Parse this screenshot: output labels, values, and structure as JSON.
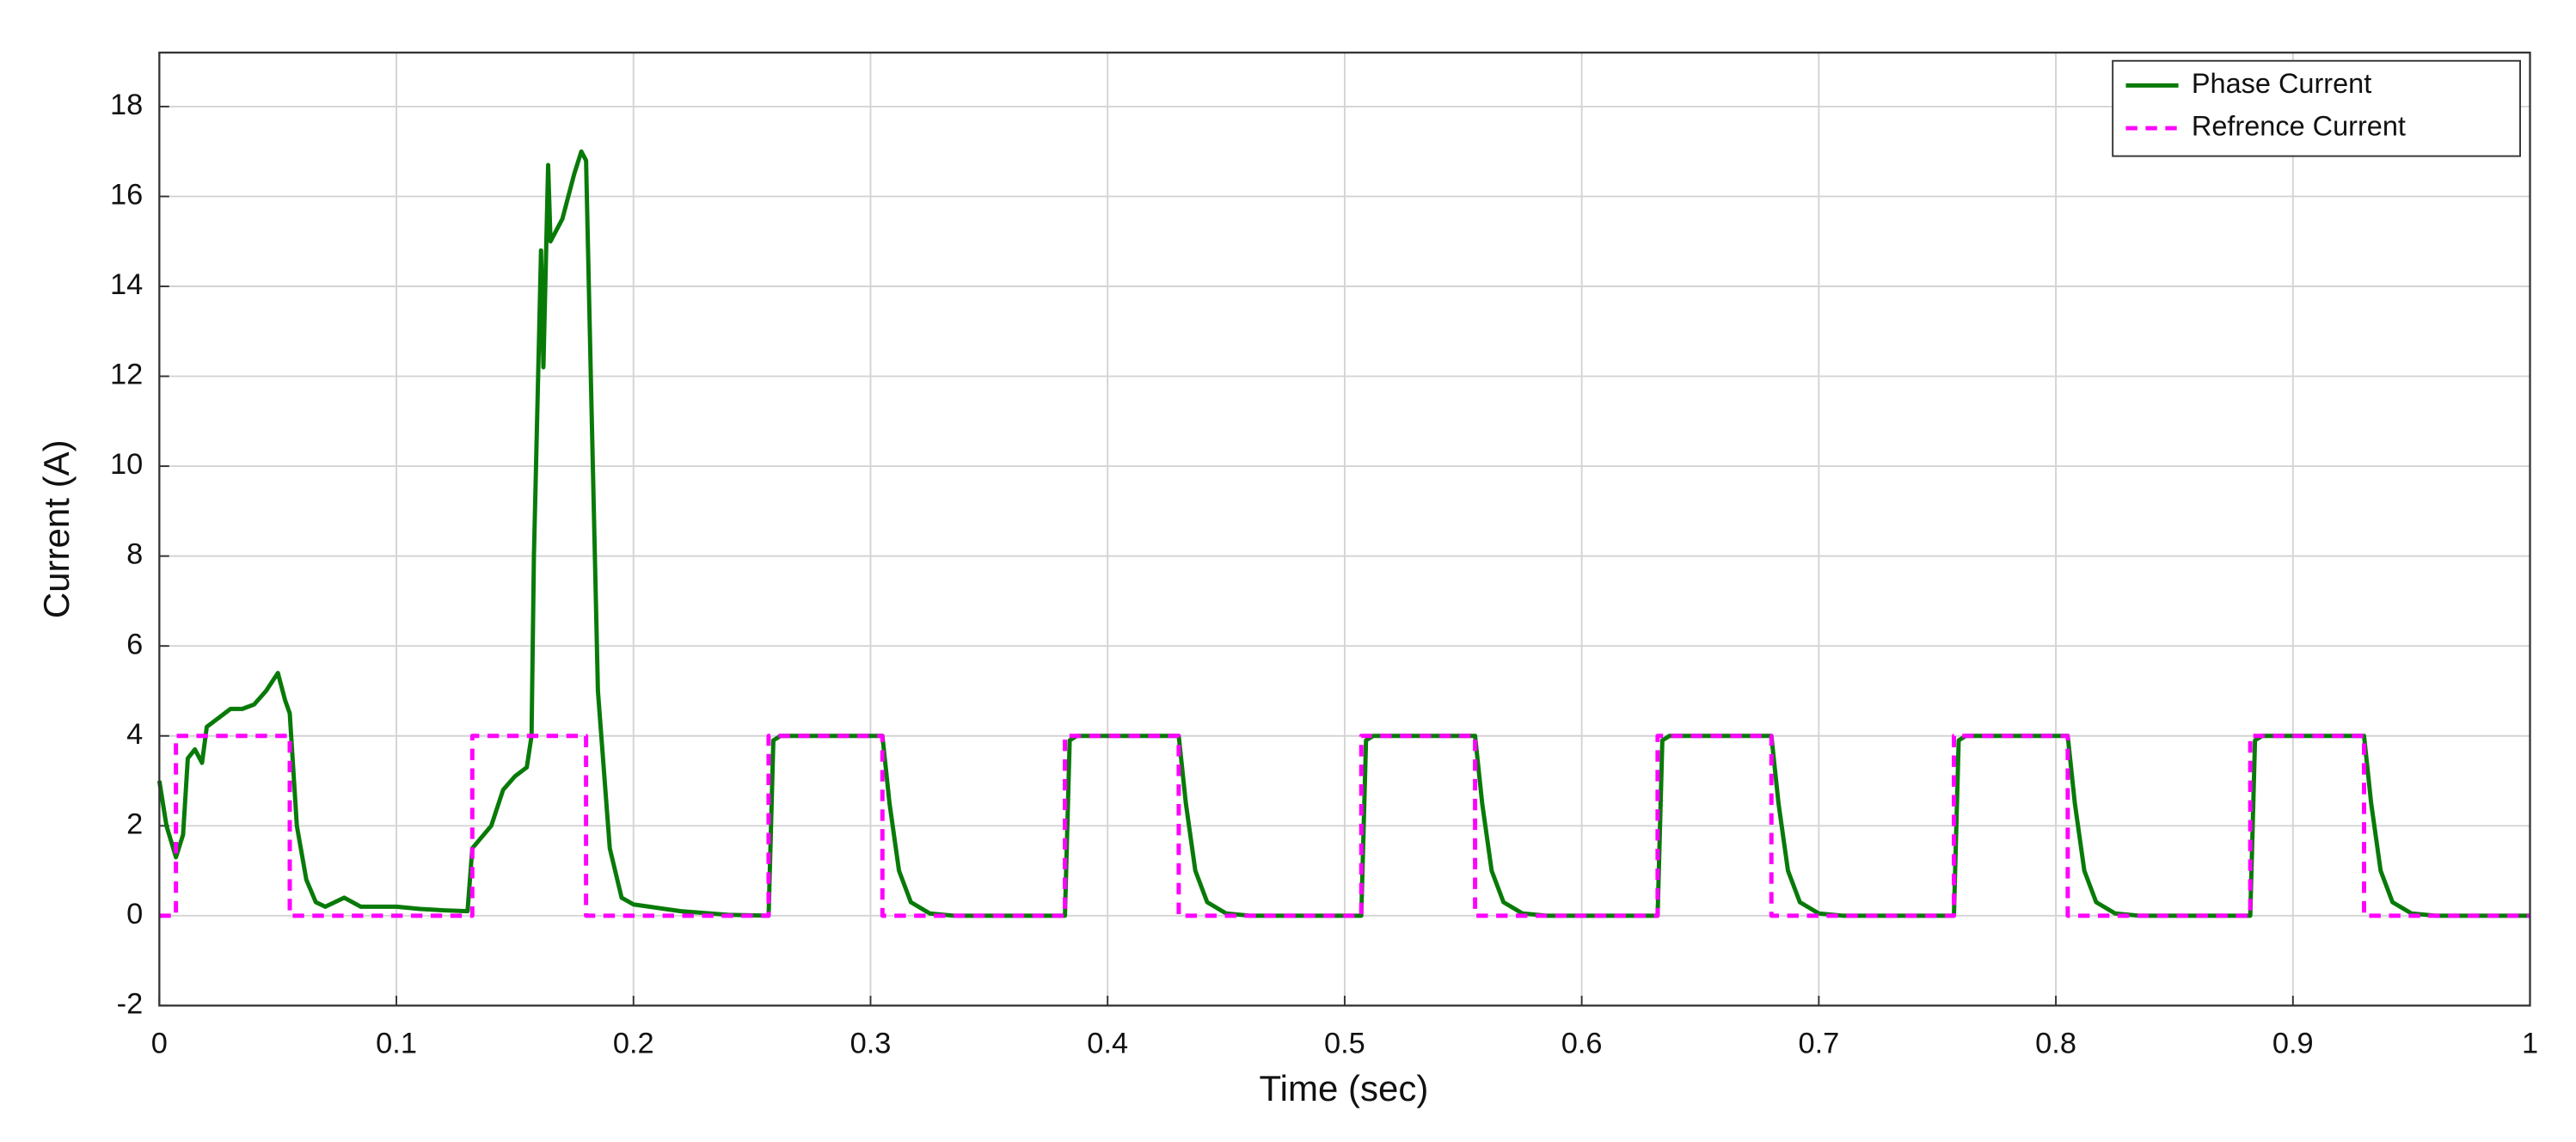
{
  "chart_data": {
    "type": "line",
    "xlabel": "Time (sec)",
    "ylabel": "Current (A)",
    "xlim": [
      0,
      1
    ],
    "ylim": [
      -2,
      19.2
    ],
    "xticks": [
      0,
      0.1,
      0.2,
      0.3,
      0.4,
      0.5,
      0.6,
      0.7,
      0.8,
      0.9,
      1
    ],
    "yticks": [
      -2,
      0,
      2,
      4,
      6,
      8,
      10,
      12,
      14,
      16,
      18
    ],
    "grid": true,
    "legend": "upper right",
    "series": [
      {
        "name": "Phase Current",
        "color": "#087a08",
        "style": "solid",
        "x": [
          0,
          0.003,
          0.007,
          0.01,
          0.012,
          0.015,
          0.018,
          0.02,
          0.025,
          0.03,
          0.035,
          0.04,
          0.045,
          0.05,
          0.053,
          0.055,
          0.058,
          0.062,
          0.066,
          0.07,
          0.078,
          0.085,
          0.1,
          0.11,
          0.12,
          0.13,
          0.132,
          0.14,
          0.145,
          0.15,
          0.155,
          0.157,
          0.158,
          0.16,
          0.161,
          0.162,
          0.164,
          0.165,
          0.17,
          0.175,
          0.178,
          0.18,
          0.182,
          0.185,
          0.19,
          0.195,
          0.2,
          0.22,
          0.24,
          0.257,
          0.259,
          0.262,
          0.305,
          0.308,
          0.312,
          0.317,
          0.325,
          0.335,
          0.382,
          0.384,
          0.387,
          0.43,
          0.433,
          0.437,
          0.442,
          0.45,
          0.46,
          0.507,
          0.509,
          0.512,
          0.555,
          0.558,
          0.562,
          0.567,
          0.575,
          0.585,
          0.632,
          0.634,
          0.637,
          0.68,
          0.683,
          0.687,
          0.692,
          0.7,
          0.71,
          0.757,
          0.759,
          0.762,
          0.805,
          0.808,
          0.812,
          0.817,
          0.825,
          0.835,
          0.882,
          0.884,
          0.887,
          0.93,
          0.933,
          0.937,
          0.942,
          0.95,
          0.96,
          1
        ],
        "values": [
          3,
          2,
          1.3,
          1.8,
          3.5,
          3.7,
          3.4,
          4.2,
          4.4,
          4.6,
          4.6,
          4.7,
          5.0,
          5.4,
          4.8,
          4.5,
          2.0,
          0.8,
          0.3,
          0.2,
          0.4,
          0.2,
          0.2,
          0.15,
          0.12,
          0.1,
          1.5,
          2.0,
          2.8,
          3.1,
          3.3,
          4.0,
          8,
          12.5,
          14.8,
          12.2,
          16.7,
          15,
          15.5,
          16.5,
          17.0,
          16.8,
          12,
          5,
          1.5,
          0.4,
          0.25,
          0.1,
          0.02,
          0,
          3.9,
          4,
          4,
          2.5,
          1,
          0.3,
          0.05,
          0,
          0,
          3.9,
          4,
          4,
          2.5,
          1,
          0.3,
          0.05,
          0,
          0,
          3.9,
          4,
          4,
          2.5,
          1,
          0.3,
          0.05,
          0,
          0,
          3.9,
          4,
          4,
          2.5,
          1,
          0.3,
          0.05,
          0,
          0,
          3.9,
          4,
          4,
          2.5,
          1,
          0.3,
          0.05,
          0,
          0,
          3.9,
          4,
          4,
          2.5,
          1,
          0.3,
          0.05,
          0,
          0
        ]
      },
      {
        "name": "Refrence Current",
        "color": "#ff00ff",
        "style": "dashed",
        "x": [
          0,
          0.007,
          0.007,
          0.055,
          0.055,
          0.132,
          0.132,
          0.18,
          0.18,
          0.257,
          0.257,
          0.305,
          0.305,
          0.382,
          0.382,
          0.43,
          0.43,
          0.507,
          0.507,
          0.555,
          0.555,
          0.632,
          0.632,
          0.68,
          0.68,
          0.757,
          0.757,
          0.805,
          0.805,
          0.882,
          0.882,
          0.93,
          0.93,
          1
        ],
        "values": [
          0,
          0,
          4,
          4,
          0,
          0,
          4,
          4,
          0,
          0,
          4,
          4,
          0,
          0,
          4,
          4,
          0,
          0,
          4,
          4,
          0,
          0,
          4,
          4,
          0,
          0,
          4,
          4,
          0,
          0,
          4,
          4,
          0,
          0
        ]
      }
    ]
  }
}
